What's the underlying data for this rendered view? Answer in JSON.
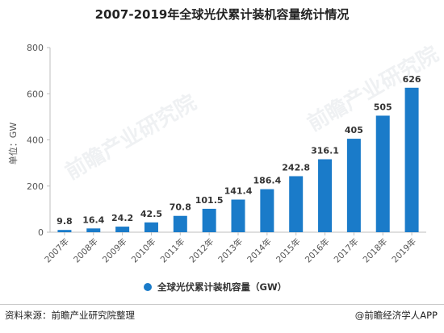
{
  "chart_data": {
    "type": "bar",
    "title": "2007-2019年全球光伏累计装机容量统计情况",
    "ylabel": "单位：GW",
    "xlabel": "",
    "categories": [
      "2007年",
      "2008年",
      "2009年",
      "2010年",
      "2011年",
      "2012年",
      "2013年",
      "2014年",
      "2015年",
      "2016年",
      "2017年",
      "2018年",
      "2019年"
    ],
    "series": [
      {
        "name": "全球光伏累计装机容量（GW）",
        "values": [
          9.8,
          16.4,
          24.2,
          42.5,
          70.8,
          101.5,
          141.4,
          186.4,
          242.8,
          316.1,
          405,
          505,
          626
        ],
        "labels": [
          "9.8",
          "16.4",
          "24.2",
          "42.5",
          "70.8",
          "101.5",
          "141.4",
          "186.4",
          "242.8",
          "316.1",
          "405",
          "505",
          "626"
        ]
      }
    ],
    "ylim": [
      0,
      800
    ],
    "yticks": [
      "0",
      "200",
      "400",
      "600",
      "800"
    ],
    "grid": false,
    "legend": "bottom",
    "color": "#1a7bc9"
  },
  "footer": {
    "source": "资料来源：前瞻产业研究院整理",
    "credit": "@前瞻经济学人APP"
  },
  "watermark": "前瞻产业研究院"
}
